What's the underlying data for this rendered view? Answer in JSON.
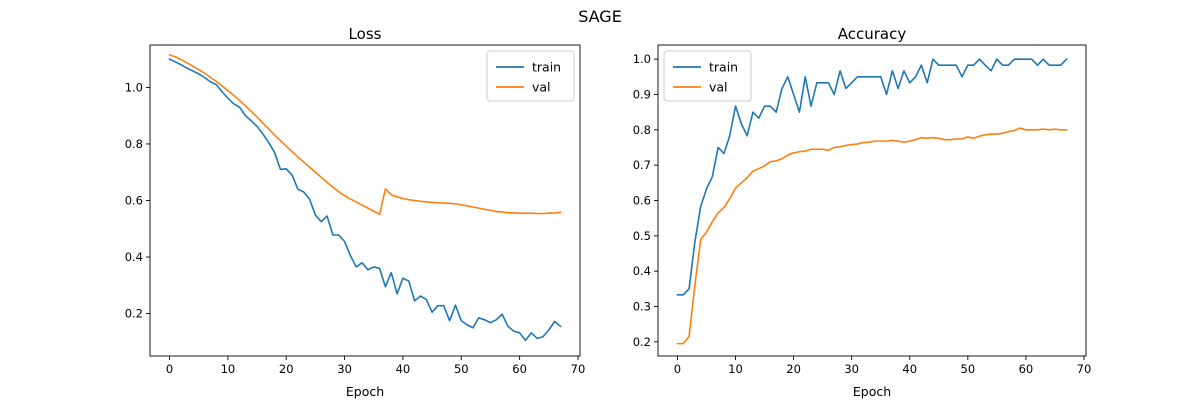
{
  "figure_title": "SAGE",
  "chart_data": [
    {
      "type": "line",
      "title": "Loss",
      "xlabel": "Epoch",
      "ylabel": "",
      "xlim": [
        -3.35,
        70.35
      ],
      "ylim": [
        0.05,
        1.15
      ],
      "xticks": [
        0,
        10,
        20,
        30,
        40,
        50,
        60,
        70
      ],
      "yticks": [
        0.2,
        0.4,
        0.6,
        0.8,
        1.0
      ],
      "ytick_labels": [
        "0.2",
        "0.4",
        "0.6",
        "0.8",
        "1.0"
      ],
      "legend_position": "upper right",
      "grid": false,
      "series": [
        {
          "name": "train",
          "color": "#1f77b4",
          "x": [
            0,
            1,
            2,
            3,
            4,
            5,
            6,
            7,
            8,
            9,
            10,
            11,
            12,
            13,
            14,
            15,
            16,
            17,
            18,
            19,
            20,
            21,
            22,
            23,
            24,
            25,
            26,
            27,
            28,
            29,
            30,
            31,
            32,
            33,
            34,
            35,
            36,
            37,
            38,
            39,
            40,
            41,
            42,
            43,
            44,
            45,
            46,
            47,
            48,
            49,
            50,
            51,
            52,
            53,
            54,
            55,
            56,
            57,
            58,
            59,
            60,
            61,
            62,
            63,
            64,
            65,
            66,
            67
          ],
          "values": [
            1.1,
            1.09,
            1.08,
            1.068,
            1.058,
            1.048,
            1.035,
            1.02,
            1.01,
            0.985,
            0.962,
            0.942,
            0.93,
            0.9,
            0.882,
            0.862,
            0.835,
            0.805,
            0.77,
            0.71,
            0.712,
            0.69,
            0.64,
            0.63,
            0.605,
            0.548,
            0.525,
            0.545,
            0.478,
            0.478,
            0.455,
            0.405,
            0.365,
            0.38,
            0.355,
            0.365,
            0.36,
            0.295,
            0.345,
            0.27,
            0.325,
            0.315,
            0.245,
            0.262,
            0.25,
            0.205,
            0.228,
            0.228,
            0.175,
            0.23,
            0.175,
            0.16,
            0.15,
            0.185,
            0.178,
            0.168,
            0.178,
            0.198,
            0.155,
            0.138,
            0.132,
            0.105,
            0.132,
            0.112,
            0.118,
            0.142,
            0.172,
            0.155
          ]
        },
        {
          "name": "val",
          "color": "#ff7f0e",
          "x": [
            0,
            1,
            2,
            3,
            4,
            5,
            6,
            7,
            8,
            9,
            10,
            11,
            12,
            13,
            14,
            15,
            16,
            17,
            18,
            19,
            20,
            21,
            22,
            23,
            24,
            25,
            26,
            27,
            28,
            29,
            30,
            31,
            32,
            33,
            34,
            35,
            36,
            37,
            38,
            39,
            40,
            41,
            42,
            43,
            44,
            45,
            46,
            47,
            48,
            49,
            50,
            51,
            52,
            53,
            54,
            55,
            56,
            57,
            58,
            59,
            60,
            61,
            62,
            63,
            64,
            65,
            66,
            67
          ],
          "values": [
            1.115,
            1.108,
            1.098,
            1.087,
            1.075,
            1.063,
            1.05,
            1.036,
            1.021,
            1.005,
            0.989,
            0.972,
            0.954,
            0.935,
            0.915,
            0.895,
            0.874,
            0.853,
            0.832,
            0.812,
            0.792,
            0.773,
            0.754,
            0.736,
            0.718,
            0.7,
            0.682,
            0.664,
            0.647,
            0.631,
            0.617,
            0.605,
            0.595,
            0.584,
            0.573,
            0.562,
            0.551,
            0.641,
            0.62,
            0.613,
            0.607,
            0.603,
            0.6,
            0.597,
            0.595,
            0.593,
            0.592,
            0.591,
            0.59,
            0.588,
            0.585,
            0.581,
            0.577,
            0.573,
            0.569,
            0.565,
            0.561,
            0.559,
            0.557,
            0.556,
            0.555,
            0.555,
            0.555,
            0.554,
            0.554,
            0.555,
            0.556,
            0.558
          ]
        }
      ]
    },
    {
      "type": "line",
      "title": "Accuracy",
      "xlabel": "Epoch",
      "ylabel": "",
      "xlim": [
        -3.35,
        70.35
      ],
      "ylim": [
        0.16,
        1.04
      ],
      "xticks": [
        0,
        10,
        20,
        30,
        40,
        50,
        60,
        70
      ],
      "yticks": [
        0.2,
        0.3,
        0.4,
        0.5,
        0.6,
        0.7,
        0.8,
        0.9,
        1.0
      ],
      "ytick_labels": [
        "0.2",
        "0.3",
        "0.4",
        "0.5",
        "0.6",
        "0.7",
        "0.8",
        "0.9",
        "1.0"
      ],
      "legend_position": "upper left",
      "grid": false,
      "series": [
        {
          "name": "train",
          "color": "#1f77b4",
          "x": [
            0,
            1,
            2,
            3,
            4,
            5,
            6,
            7,
            8,
            9,
            10,
            11,
            12,
            13,
            14,
            15,
            16,
            17,
            18,
            19,
            20,
            21,
            22,
            23,
            24,
            25,
            26,
            27,
            28,
            29,
            30,
            31,
            32,
            33,
            34,
            35,
            36,
            37,
            38,
            39,
            40,
            41,
            42,
            43,
            44,
            45,
            46,
            47,
            48,
            49,
            50,
            51,
            52,
            53,
            54,
            55,
            56,
            57,
            58,
            59,
            60,
            61,
            62,
            63,
            64,
            65,
            66,
            67
          ],
          "values": [
            0.333,
            0.333,
            0.35,
            0.483,
            0.583,
            0.633,
            0.667,
            0.75,
            0.733,
            0.783,
            0.867,
            0.817,
            0.783,
            0.85,
            0.833,
            0.867,
            0.867,
            0.85,
            0.917,
            0.95,
            0.9,
            0.85,
            0.95,
            0.867,
            0.933,
            0.933,
            0.933,
            0.9,
            0.967,
            0.917,
            0.933,
            0.95,
            0.95,
            0.95,
            0.95,
            0.95,
            0.9,
            0.967,
            0.917,
            0.967,
            0.933,
            0.95,
            0.983,
            0.933,
            1.0,
            0.983,
            0.983,
            0.983,
            0.983,
            0.95,
            0.983,
            0.983,
            1.0,
            0.983,
            0.967,
            1.0,
            0.983,
            0.983,
            1.0,
            1.0,
            1.0,
            1.0,
            0.983,
            1.0,
            0.983,
            0.983,
            0.983,
            1.0
          ]
        },
        {
          "name": "val",
          "color": "#ff7f0e",
          "x": [
            0,
            1,
            2,
            3,
            4,
            5,
            6,
            7,
            8,
            9,
            10,
            11,
            12,
            13,
            14,
            15,
            16,
            17,
            18,
            19,
            20,
            21,
            22,
            23,
            24,
            25,
            26,
            27,
            28,
            29,
            30,
            31,
            32,
            33,
            34,
            35,
            36,
            37,
            38,
            39,
            40,
            41,
            42,
            43,
            44,
            45,
            46,
            47,
            48,
            49,
            50,
            51,
            52,
            53,
            54,
            55,
            56,
            57,
            58,
            59,
            60,
            61,
            62,
            63,
            64,
            65,
            66,
            67
          ],
          "values": [
            0.195,
            0.195,
            0.215,
            0.36,
            0.49,
            0.51,
            0.54,
            0.565,
            0.58,
            0.605,
            0.635,
            0.65,
            0.665,
            0.683,
            0.69,
            0.698,
            0.71,
            0.712,
            0.718,
            0.728,
            0.735,
            0.738,
            0.74,
            0.745,
            0.745,
            0.745,
            0.742,
            0.75,
            0.752,
            0.756,
            0.758,
            0.76,
            0.764,
            0.765,
            0.768,
            0.768,
            0.768,
            0.77,
            0.768,
            0.765,
            0.768,
            0.772,
            0.778,
            0.776,
            0.778,
            0.776,
            0.772,
            0.772,
            0.774,
            0.774,
            0.78,
            0.776,
            0.782,
            0.786,
            0.788,
            0.788,
            0.79,
            0.795,
            0.798,
            0.805,
            0.8,
            0.8,
            0.8,
            0.802,
            0.8,
            0.802,
            0.8,
            0.8
          ]
        }
      ]
    }
  ]
}
